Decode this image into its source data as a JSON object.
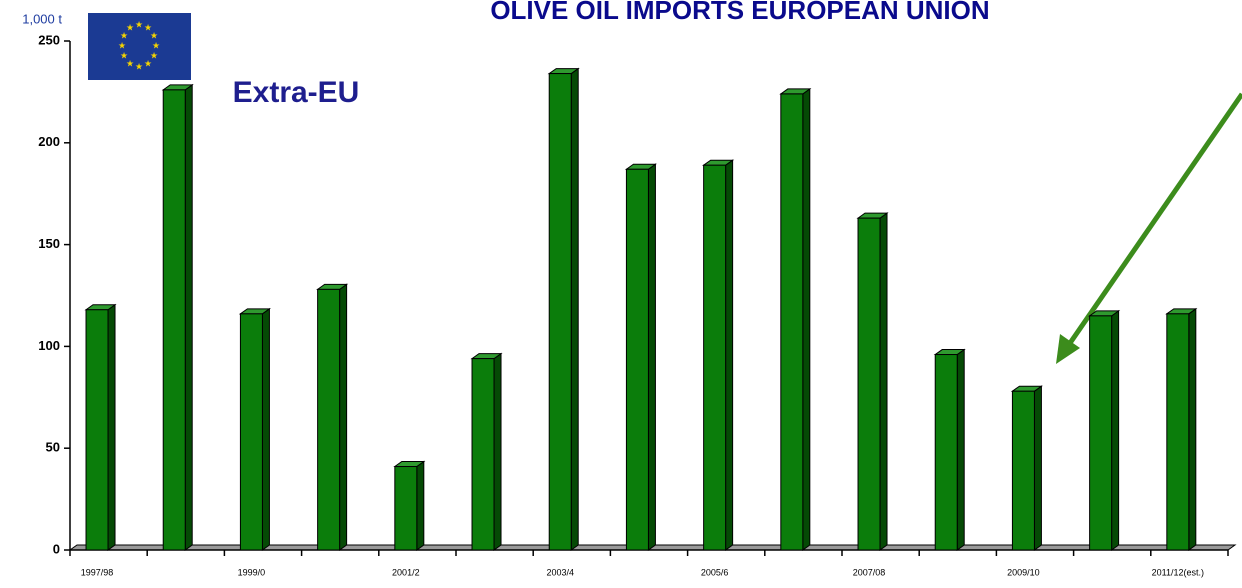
{
  "chart_data": {
    "type": "bar",
    "title": "OLIVE OIL IMPORTS  EUROPEAN UNION",
    "annotation": "Extra-EU",
    "unit_label": "1,000 t",
    "categories": [
      "1997/98",
      null,
      "1999/0",
      null,
      "2001/2",
      null,
      "2003/4",
      null,
      "2005/6",
      null,
      "2007/08",
      null,
      "2009/10",
      null,
      "2011/12(est.)"
    ],
    "values": [
      118,
      226,
      116,
      128,
      41,
      94,
      234,
      187,
      189,
      224,
      163,
      96,
      78,
      115,
      116
    ],
    "color": "#0b7d0b",
    "ylim": [
      0,
      250
    ],
    "yticks": [
      0,
      50,
      100,
      150,
      200,
      250
    ],
    "grid": false
  }
}
